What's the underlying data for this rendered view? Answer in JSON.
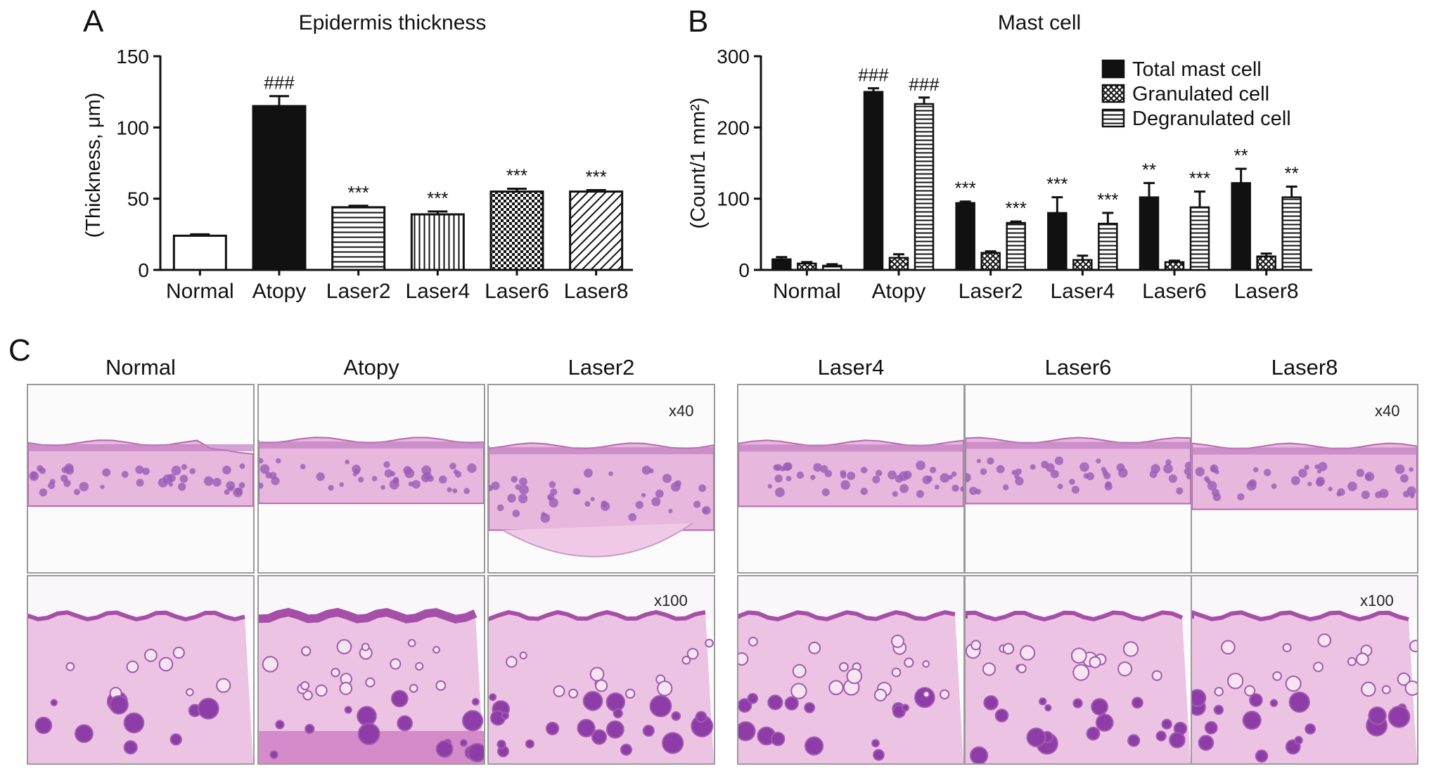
{
  "panels": {
    "a": "A",
    "b": "B",
    "c": "C"
  },
  "chart_data": [
    {
      "type": "bar",
      "title": "Epidermis thickness",
      "ylabel": "(Thickness, μm)",
      "xlabel": "",
      "categories": [
        "Normal",
        "Atopy",
        "Laser2",
        "Laser4",
        "Laser6",
        "Laser8"
      ],
      "values": [
        24,
        115,
        44,
        39,
        55,
        55
      ],
      "errors": [
        1,
        7,
        1,
        2,
        2,
        1
      ],
      "annotations": [
        "",
        "###",
        "***",
        "***",
        "***",
        "***"
      ],
      "fills": [
        "white",
        "black",
        "hlines",
        "vlines",
        "checker",
        "diag"
      ],
      "ylim": [
        0,
        150
      ],
      "yticks": [
        0,
        50,
        100,
        150
      ],
      "grid": false,
      "legend": "none"
    },
    {
      "type": "bar",
      "title": "Mast cell",
      "ylabel": "(Count/1 mm²)",
      "xlabel": "",
      "categories": [
        "Normal",
        "Atopy",
        "Laser2",
        "Laser4",
        "Laser6",
        "Laser8"
      ],
      "series": [
        {
          "name": "Total mast cell",
          "fill": "black",
          "values": [
            15,
            250,
            94,
            80,
            102,
            122
          ],
          "errors": [
            3,
            5,
            2,
            22,
            20,
            20
          ],
          "annotations": [
            "",
            "###",
            "***",
            "***",
            "**",
            "**"
          ]
        },
        {
          "name": "Granulated cell",
          "fill": "crosshatch",
          "values": [
            9,
            17,
            24,
            14,
            11,
            19
          ],
          "errors": [
            2,
            5,
            2,
            6,
            2,
            4
          ],
          "annotations": [
            "",
            "",
            "",
            "",
            "",
            ""
          ]
        },
        {
          "name": "Degranulated cell",
          "fill": "hlines",
          "values": [
            6,
            233,
            66,
            65,
            88,
            102
          ],
          "errors": [
            2,
            9,
            2,
            15,
            22,
            15
          ],
          "annotations": [
            "",
            "###",
            "***",
            "***",
            "***",
            "**"
          ]
        }
      ],
      "ylim": [
        0,
        300
      ],
      "yticks": [
        0,
        100,
        200,
        300
      ],
      "grid": false,
      "legend": "top-right"
    }
  ],
  "micrographs": {
    "groups": [
      "Normal",
      "Atopy",
      "Laser2",
      "Laser4",
      "Laser6",
      "Laser8"
    ],
    "magnifications": [
      "x40",
      "x100"
    ]
  }
}
